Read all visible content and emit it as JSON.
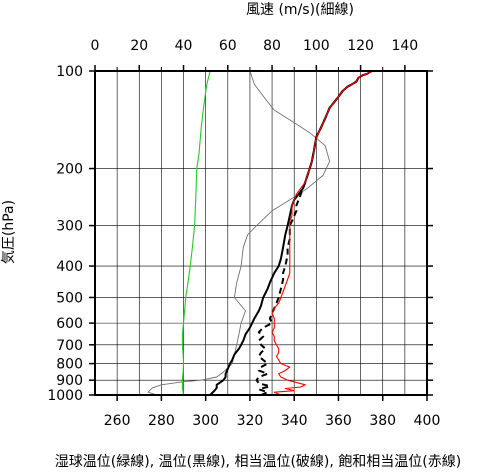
{
  "chart_data": {
    "type": "line",
    "title_top": "風速 (m/s)(細線)",
    "ylabel": "気圧(hPa)",
    "xlabel_bottom": "湿球温位(緑線), 温位(黒線), 相当温位(破線), 飽和相当温位(赤線)",
    "y_scale": "log",
    "y_inverted": true,
    "ylim": [
      1000,
      100
    ],
    "y_ticks": [
      100,
      200,
      300,
      400,
      500,
      600,
      700,
      800,
      900,
      1000
    ],
    "x_bottom": {
      "lim": [
        250,
        400
      ],
      "ticks": [
        260,
        280,
        300,
        320,
        340,
        360,
        380,
        400
      ],
      "unit": "K"
    },
    "x_top": {
      "lim": [
        0,
        150
      ],
      "ticks": [
        0,
        20,
        40,
        60,
        80,
        100,
        120,
        140
      ],
      "unit": "m/s"
    },
    "grid": true,
    "series": [
      {
        "axis": "top",
        "style": "thin",
        "color": "#707070",
        "points": [
          [
            28,
            1000
          ],
          [
            24,
            980
          ],
          [
            26,
            950
          ],
          [
            30,
            930
          ],
          [
            40,
            910
          ],
          [
            48,
            900
          ],
          [
            55,
            880
          ],
          [
            58,
            850
          ],
          [
            62,
            800
          ],
          [
            63,
            750
          ],
          [
            64,
            700
          ],
          [
            65,
            650
          ],
          [
            66,
            600
          ],
          [
            68,
            550
          ],
          [
            63,
            500
          ],
          [
            64,
            450
          ],
          [
            66,
            400
          ],
          [
            67,
            350
          ],
          [
            69,
            320
          ],
          [
            73,
            300
          ],
          [
            80,
            270
          ],
          [
            88,
            250
          ],
          [
            96,
            230
          ],
          [
            103,
            210
          ],
          [
            106,
            190
          ],
          [
            104,
            170
          ],
          [
            97,
            155
          ],
          [
            89,
            143
          ],
          [
            81,
            132
          ],
          [
            77,
            122
          ],
          [
            72,
            110
          ],
          [
            70,
            100
          ]
        ]
      },
      {
        "axis": "bottom",
        "style": "solid",
        "color": "#22cc22",
        "points": [
          [
            290,
            1000
          ],
          [
            289.5,
            950
          ],
          [
            289.5,
            900
          ],
          [
            289.8,
            850
          ],
          [
            290,
            800
          ],
          [
            289.8,
            750
          ],
          [
            289.5,
            700
          ],
          [
            289.5,
            650
          ],
          [
            290,
            600
          ],
          [
            290.5,
            550
          ],
          [
            291,
            500
          ],
          [
            292,
            450
          ],
          [
            293,
            400
          ],
          [
            294,
            350
          ],
          [
            295,
            300
          ],
          [
            295.5,
            250
          ],
          [
            296,
            200
          ],
          [
            297,
            180
          ],
          [
            298,
            150
          ],
          [
            299,
            130
          ],
          [
            300.5,
            110
          ],
          [
            302,
            100
          ]
        ]
      },
      {
        "axis": "bottom",
        "style": "thick",
        "color": "#000000",
        "points": [
          [
            302,
            1000
          ],
          [
            304,
            970
          ],
          [
            305,
            950
          ],
          [
            305,
            930
          ],
          [
            306,
            920
          ],
          [
            308,
            900
          ],
          [
            309,
            880
          ],
          [
            309,
            860
          ],
          [
            310,
            830
          ],
          [
            311,
            800
          ],
          [
            312,
            780
          ],
          [
            313,
            750
          ],
          [
            315,
            720
          ],
          [
            316,
            700
          ],
          [
            317,
            680
          ],
          [
            318,
            650
          ],
          [
            320,
            620
          ],
          [
            322,
            580
          ],
          [
            324,
            550
          ],
          [
            325,
            530
          ],
          [
            326,
            500
          ],
          [
            328,
            470
          ],
          [
            329,
            450
          ],
          [
            331,
            420
          ],
          [
            333,
            400
          ],
          [
            334,
            380
          ],
          [
            335,
            350
          ],
          [
            336,
            320
          ],
          [
            337,
            300
          ],
          [
            338,
            280
          ],
          [
            339,
            260
          ],
          [
            340,
            250
          ],
          [
            342,
            240
          ],
          [
            344,
            230
          ],
          [
            345,
            220
          ],
          [
            346,
            210
          ],
          [
            347,
            200
          ],
          [
            348,
            190
          ],
          [
            349,
            175
          ],
          [
            350,
            160
          ],
          [
            352,
            150
          ],
          [
            354,
            140
          ],
          [
            356,
            130
          ],
          [
            358,
            125
          ],
          [
            360,
            120
          ],
          [
            362,
            115
          ],
          [
            364,
            112
          ],
          [
            366,
            110
          ],
          [
            368,
            108
          ],
          [
            369,
            105
          ],
          [
            371,
            103
          ],
          [
            373,
            102
          ],
          [
            375,
            100
          ]
        ]
      },
      {
        "axis": "bottom",
        "style": "dashed",
        "color": "#000000",
        "points": [
          [
            325,
            1000
          ],
          [
            328,
            980
          ],
          [
            324,
            960
          ],
          [
            329,
            940
          ],
          [
            324,
            920
          ],
          [
            323,
            900
          ],
          [
            324,
            880
          ],
          [
            328,
            860
          ],
          [
            324,
            840
          ],
          [
            325,
            820
          ],
          [
            328,
            800
          ],
          [
            326,
            780
          ],
          [
            324,
            760
          ],
          [
            325,
            740
          ],
          [
            327,
            720
          ],
          [
            325,
            700
          ],
          [
            324,
            680
          ],
          [
            326,
            660
          ],
          [
            324,
            640
          ],
          [
            326,
            620
          ],
          [
            330,
            600
          ],
          [
            329,
            580
          ],
          [
            330,
            560
          ],
          [
            331,
            540
          ],
          [
            332,
            520
          ],
          [
            333,
            500
          ],
          [
            334,
            470
          ],
          [
            335,
            440
          ],
          [
            335,
            420
          ],
          [
            336,
            400
          ],
          [
            337,
            370
          ],
          [
            337,
            350
          ],
          [
            338,
            330
          ],
          [
            338,
            310
          ],
          [
            338,
            300
          ],
          [
            339,
            290
          ],
          [
            340,
            280
          ],
          [
            341,
            270
          ],
          [
            341,
            260
          ],
          [
            342,
            250
          ],
          [
            343,
            240
          ],
          [
            344,
            230
          ],
          [
            345,
            220
          ],
          [
            346,
            210
          ],
          [
            347,
            200
          ],
          [
            348,
            190
          ],
          [
            349,
            175
          ],
          [
            350,
            160
          ],
          [
            352,
            150
          ],
          [
            354,
            140
          ],
          [
            356,
            130
          ],
          [
            358,
            125
          ],
          [
            360,
            120
          ],
          [
            362,
            115
          ],
          [
            364,
            112
          ],
          [
            366,
            110
          ],
          [
            368,
            108
          ],
          [
            369,
            105
          ],
          [
            371,
            103
          ],
          [
            373,
            102
          ],
          [
            375,
            100
          ]
        ]
      },
      {
        "axis": "bottom",
        "style": "solid",
        "color": "#ff0000",
        "points": [
          [
            334,
            1000
          ],
          [
            331,
            980
          ],
          [
            340,
            970
          ],
          [
            336,
            955
          ],
          [
            343,
            945
          ],
          [
            345,
            930
          ],
          [
            337,
            900
          ],
          [
            334,
            880
          ],
          [
            333,
            860
          ],
          [
            336,
            840
          ],
          [
            338,
            820
          ],
          [
            334,
            800
          ],
          [
            333,
            780
          ],
          [
            332,
            760
          ],
          [
            333,
            740
          ],
          [
            333,
            720
          ],
          [
            332,
            700
          ],
          [
            331,
            680
          ],
          [
            331,
            660
          ],
          [
            330,
            640
          ],
          [
            331,
            620
          ],
          [
            331,
            600
          ],
          [
            331,
            580
          ],
          [
            330,
            560
          ],
          [
            331,
            540
          ],
          [
            333,
            520
          ],
          [
            334,
            500
          ],
          [
            335,
            480
          ],
          [
            336,
            460
          ],
          [
            337,
            440
          ],
          [
            338,
            420
          ],
          [
            338,
            400
          ],
          [
            338,
            380
          ],
          [
            338,
            360
          ],
          [
            338,
            340
          ],
          [
            338,
            320
          ],
          [
            338,
            300
          ],
          [
            338,
            290
          ],
          [
            339,
            280
          ],
          [
            339,
            270
          ],
          [
            339,
            260
          ],
          [
            340,
            250
          ],
          [
            341,
            240
          ],
          [
            343,
            230
          ],
          [
            345,
            220
          ],
          [
            346,
            210
          ],
          [
            347,
            200
          ],
          [
            348,
            190
          ],
          [
            349,
            175
          ],
          [
            350,
            160
          ],
          [
            352,
            150
          ],
          [
            354,
            140
          ],
          [
            356,
            130
          ],
          [
            358,
            125
          ],
          [
            360,
            120
          ],
          [
            362,
            115
          ],
          [
            364,
            112
          ],
          [
            366,
            110
          ],
          [
            368,
            108
          ],
          [
            369,
            105
          ],
          [
            371,
            103
          ],
          [
            373,
            102
          ],
          [
            375,
            100
          ]
        ]
      }
    ]
  }
}
